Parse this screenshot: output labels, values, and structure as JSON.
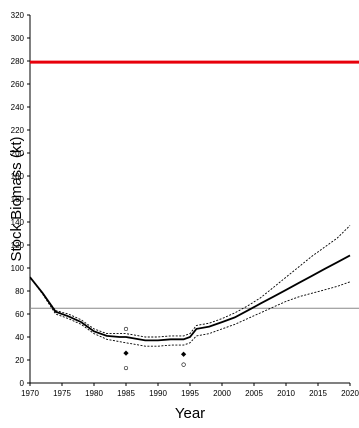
{
  "chart_data": {
    "type": "line",
    "title": "",
    "xlabel": "Year",
    "ylabel": "Stock Biomass (kt)",
    "xlim": [
      1970,
      2020
    ],
    "ylim": [
      0,
      320
    ],
    "xticks": [
      "1970",
      "1975",
      "1980",
      "1985",
      "1990",
      "1995",
      "2000",
      "2005",
      "2010",
      "2015",
      "2020"
    ],
    "yticks": [
      "0",
      "20",
      "40",
      "60",
      "80",
      "100",
      "120",
      "140",
      "160",
      "180",
      "200",
      "220",
      "240",
      "260",
      "280",
      "300",
      "320"
    ],
    "grid": false,
    "legend": "none",
    "reference_lines": [
      {
        "y": 279,
        "color": "#e8000b"
      },
      {
        "y": 65,
        "color": "#888888"
      }
    ],
    "series": [
      {
        "style": "solid-thick",
        "color": "#000000",
        "x": [
          1970,
          1972,
          1974,
          1976,
          1978,
          1980,
          1982,
          1984,
          1985,
          1986,
          1988,
          1990,
          1992,
          1994,
          1995,
          1996,
          1998,
          2000,
          2002,
          2004,
          2006,
          2008,
          2010,
          2012,
          2014,
          2016,
          2018,
          2020
        ],
        "y": [
          92,
          78,
          62,
          58,
          53,
          45,
          41,
          40,
          40,
          39,
          37,
          37,
          38,
          38,
          40,
          47,
          49,
          53,
          57,
          63,
          69,
          75,
          81,
          87,
          93,
          99,
          105,
          111
        ]
      },
      {
        "style": "dotted-upper",
        "color": "#000000",
        "x": [
          1970,
          1972,
          1974,
          1976,
          1978,
          1980,
          1982,
          1984,
          1985,
          1986,
          1988,
          1990,
          1992,
          1994,
          1995,
          1996,
          1998,
          2000,
          2002,
          2004,
          2006,
          2008,
          2010,
          2012,
          2014,
          2016,
          2018,
          2020
        ],
        "y": [
          92,
          78,
          63,
          60,
          55,
          47,
          43,
          43,
          43,
          42,
          40,
          40,
          41,
          41,
          43,
          50,
          52,
          56,
          61,
          67,
          74,
          83,
          92,
          101,
          110,
          118,
          126,
          137
        ]
      },
      {
        "style": "dotted-lower",
        "color": "#000000",
        "x": [
          1970,
          1972,
          1974,
          1976,
          1978,
          1980,
          1982,
          1984,
          1985,
          1986,
          1988,
          1990,
          1992,
          1994,
          1995,
          1996,
          1998,
          2000,
          2002,
          2004,
          2006,
          2008,
          2010,
          2012,
          2014,
          2016,
          2018,
          2020
        ],
        "y": [
          92,
          77,
          60,
          56,
          51,
          43,
          38,
          36,
          35,
          34,
          32,
          32,
          33,
          33,
          35,
          41,
          43,
          47,
          51,
          56,
          61,
          66,
          71,
          75,
          78,
          81,
          84,
          88
        ]
      }
    ],
    "points": [
      {
        "x": 1985,
        "y": 47,
        "marker": "open"
      },
      {
        "x": 1985,
        "y": 26,
        "marker": "filled"
      },
      {
        "x": 1985,
        "y": 13,
        "marker": "open"
      },
      {
        "x": 1994,
        "y": 25,
        "marker": "filled"
      },
      {
        "x": 1994,
        "y": 16,
        "marker": "open"
      }
    ]
  }
}
